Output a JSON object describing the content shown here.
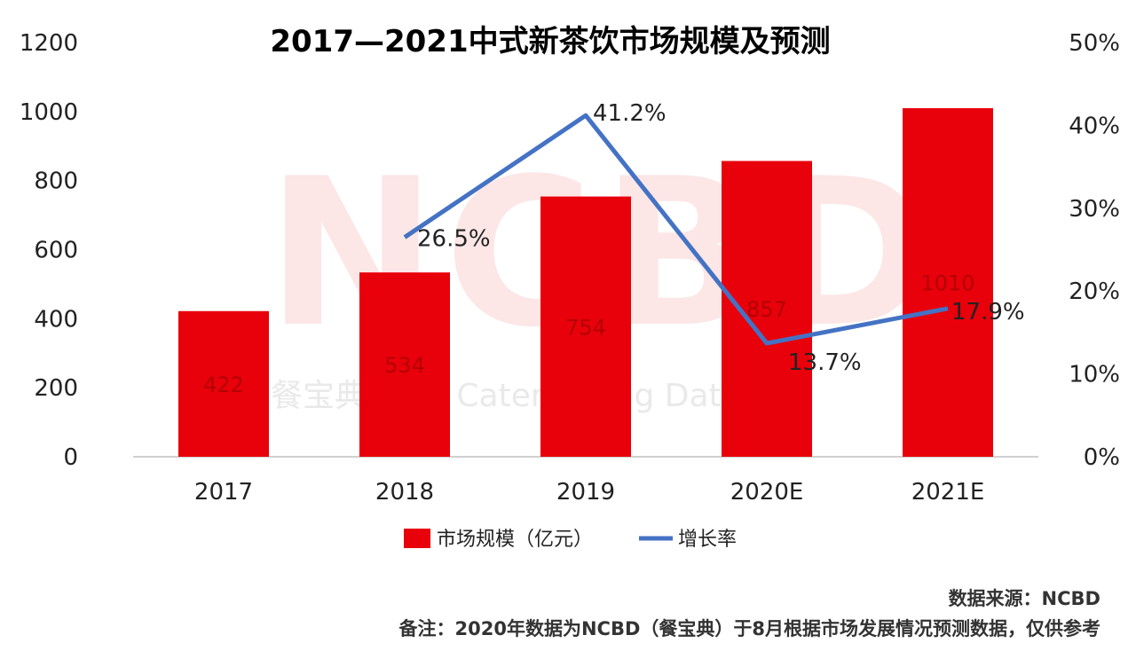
{
  "chart_data": {
    "type": "bar",
    "title": "2017—2021中式新茶饮市场规模及预测",
    "categories": [
      "2017",
      "2018",
      "2019",
      "2020E",
      "2021E"
    ],
    "series": [
      {
        "name": "市场规模（亿元）",
        "type": "bar",
        "axis": "left",
        "color": "#e8000b",
        "values": [
          422,
          534,
          754,
          857,
          1010
        ],
        "labels": [
          "422",
          "534",
          "754",
          "857",
          "1010"
        ]
      },
      {
        "name": "增长率",
        "type": "line",
        "axis": "right",
        "color": "#4472c4",
        "values": [
          null,
          26.5,
          41.2,
          13.7,
          17.9
        ],
        "labels": [
          null,
          "26.5%",
          "41.2%",
          "13.7%",
          "17.9%"
        ]
      }
    ],
    "y_left": {
      "min": 0,
      "max": 1200,
      "ticks": [
        "0",
        "200",
        "400",
        "600",
        "800",
        "1000",
        "1200"
      ]
    },
    "y_right": {
      "min": 0,
      "max": 50,
      "ticks": [
        "0%",
        "10%",
        "20%",
        "30%",
        "40%",
        "50%"
      ]
    },
    "legend_position": "bottom",
    "grid": false
  },
  "watermark": {
    "logo_text": "NCBD",
    "sub_text": "餐宝典 New Catering Big Data"
  },
  "footer": {
    "source": "数据来源：NCBD",
    "remark": "备注：2020年数据为NCBD（餐宝典）于8月根据市场发展情况预测数据，仅供参考"
  }
}
